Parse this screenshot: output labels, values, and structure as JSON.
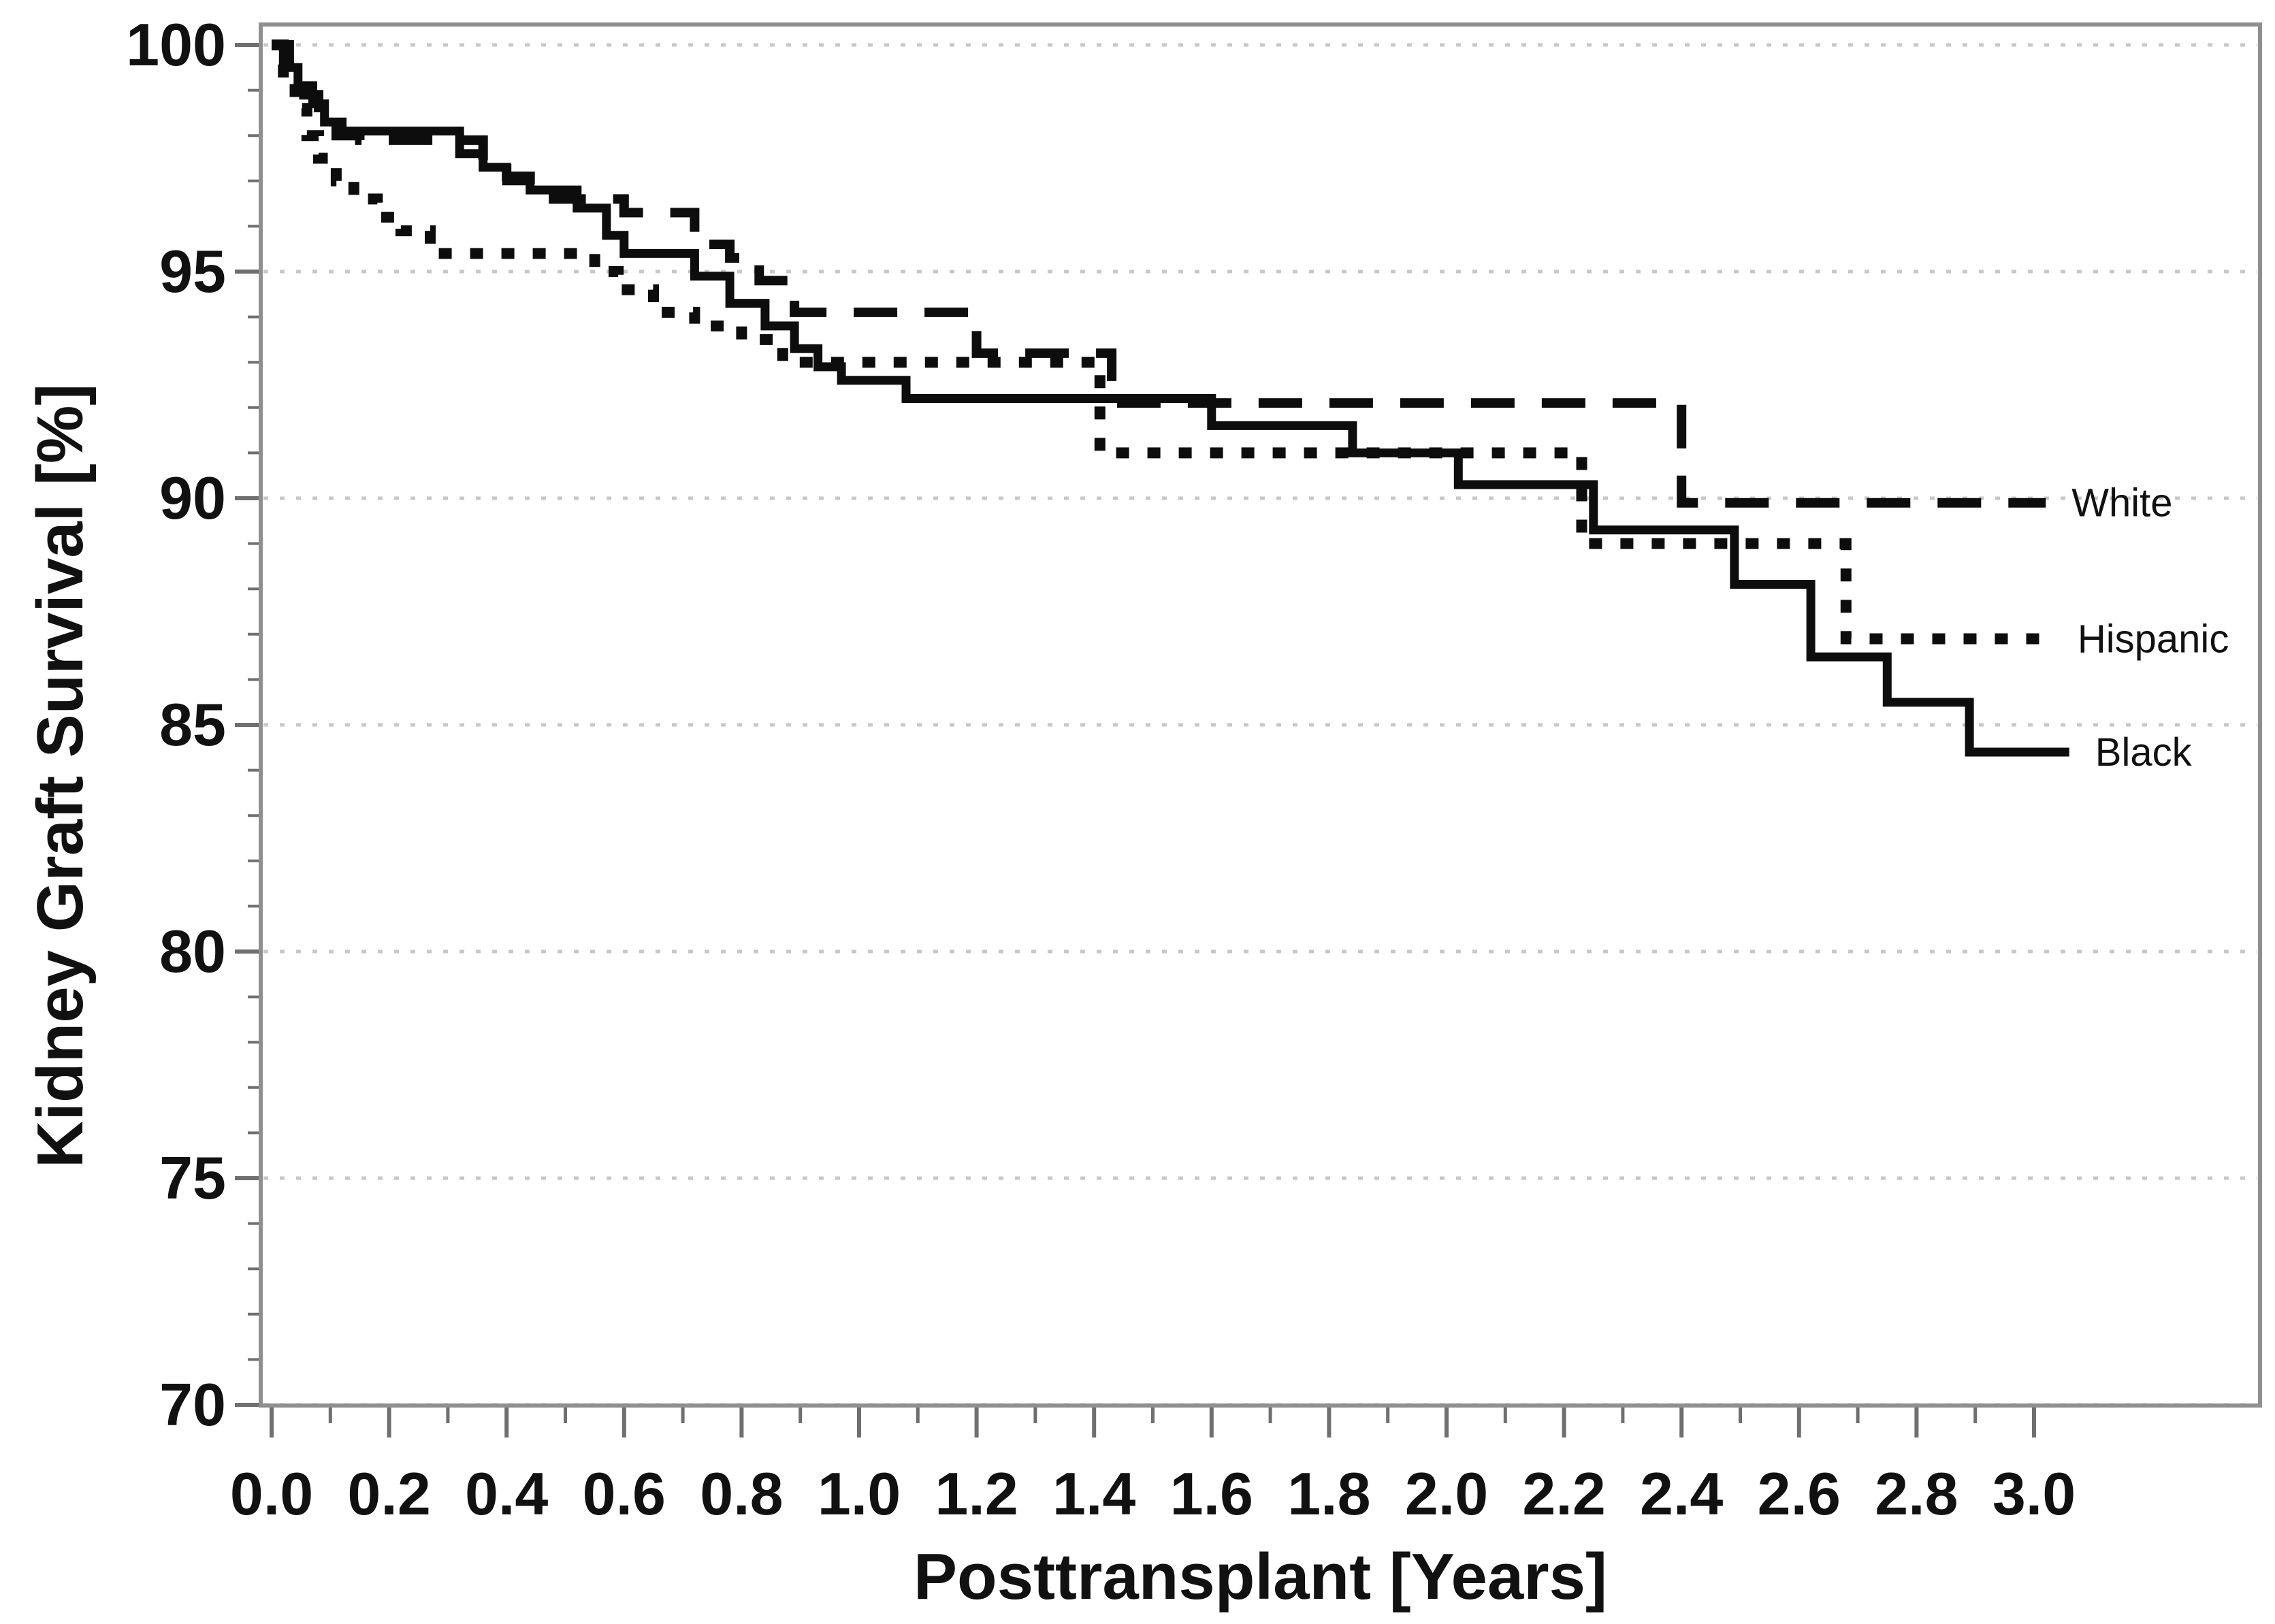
{
  "figure": {
    "background": "#ffffff",
    "y_axis": {
      "title": "Kidney Graft Survival [%]",
      "tick_labels": [
        "100",
        "95",
        "90",
        "85",
        "80",
        "75",
        "70"
      ],
      "tick_values": [
        100,
        95,
        90,
        85,
        80,
        75,
        70
      ],
      "range": [
        70,
        100
      ],
      "minor_tick_step": 1
    },
    "x_axis": {
      "title": "Posttransplant [Years]",
      "tick_labels": [
        "0.0",
        "0.2",
        "0.4",
        "0.6",
        "0.8",
        "1.0",
        "1.2",
        "1.4",
        "1.6",
        "1.8",
        "2.0",
        "2.2",
        "2.4",
        "2.6",
        "2.8",
        "3.0"
      ],
      "tick_values": [
        0.0,
        0.2,
        0.4,
        0.6,
        0.8,
        1.0,
        1.2,
        1.4,
        1.6,
        1.8,
        2.0,
        2.2,
        2.4,
        2.6,
        2.8,
        3.0
      ],
      "range": [
        0,
        3.39
      ],
      "minor_tick_step": 0.1
    }
  },
  "chart_data": {
    "type": "line",
    "subtype": "kaplan_meier_step",
    "title": "",
    "xlabel": "Posttransplant [Years]",
    "ylabel": "Kidney Graft Survival [%]",
    "xlim": [
      0,
      3.39
    ],
    "ylim": [
      70,
      100
    ],
    "grid": "horizontal dotted gridlines at every 5 percent",
    "legend_position": "end-of-line labels at right",
    "series": [
      {
        "name": "White",
        "line_style": "dashed",
        "color": "#0d0d0d",
        "steps": [
          [
            0.0,
            100
          ],
          [
            0.03,
            99.4
          ],
          [
            0.055,
            98.9
          ],
          [
            0.08,
            98.5
          ],
          [
            0.11,
            98.0
          ],
          [
            0.15,
            97.9
          ],
          [
            0.36,
            97.4
          ],
          [
            0.4,
            97.1
          ],
          [
            0.44,
            96.9
          ],
          [
            0.48,
            96.6
          ],
          [
            0.6,
            96.3
          ],
          [
            0.72,
            95.6
          ],
          [
            0.78,
            95.3
          ],
          [
            0.83,
            94.8
          ],
          [
            0.89,
            94.1
          ],
          [
            1.2,
            93.2
          ],
          [
            1.43,
            92.1
          ],
          [
            2.4,
            89.9
          ],
          [
            3.02,
            89.9
          ]
        ]
      },
      {
        "name": "Hispanic",
        "line_style": "dotted",
        "color": "#0d0d0d",
        "steps": [
          [
            0.0,
            100
          ],
          [
            0.02,
            99.2
          ],
          [
            0.04,
            98.6
          ],
          [
            0.06,
            98.0
          ],
          [
            0.08,
            97.5
          ],
          [
            0.11,
            97.0
          ],
          [
            0.14,
            96.6
          ],
          [
            0.18,
            96.2
          ],
          [
            0.22,
            95.9
          ],
          [
            0.27,
            95.4
          ],
          [
            0.55,
            95.0
          ],
          [
            0.59,
            94.6
          ],
          [
            0.65,
            94.1
          ],
          [
            0.72,
            93.8
          ],
          [
            0.8,
            93.5
          ],
          [
            0.87,
            93.0
          ],
          [
            1.41,
            91.0
          ],
          [
            2.23,
            89.0
          ],
          [
            2.68,
            86.9
          ],
          [
            3.03,
            86.9
          ]
        ]
      },
      {
        "name": "Black",
        "line_style": "solid",
        "color": "#0d0d0d",
        "steps": [
          [
            0.0,
            100
          ],
          [
            0.02,
            99.5
          ],
          [
            0.045,
            99.1
          ],
          [
            0.07,
            98.7
          ],
          [
            0.09,
            98.3
          ],
          [
            0.12,
            98.1
          ],
          [
            0.32,
            97.6
          ],
          [
            0.36,
            97.3
          ],
          [
            0.4,
            97.0
          ],
          [
            0.44,
            96.8
          ],
          [
            0.52,
            96.4
          ],
          [
            0.57,
            95.8
          ],
          [
            0.6,
            95.4
          ],
          [
            0.72,
            94.9
          ],
          [
            0.78,
            94.3
          ],
          [
            0.84,
            93.8
          ],
          [
            0.89,
            93.3
          ],
          [
            0.93,
            92.9
          ],
          [
            0.97,
            92.6
          ],
          [
            1.08,
            92.2
          ],
          [
            1.6,
            91.6
          ],
          [
            1.84,
            91.0
          ],
          [
            2.02,
            90.3
          ],
          [
            2.25,
            89.3
          ],
          [
            2.49,
            88.1
          ],
          [
            2.62,
            86.5
          ],
          [
            2.75,
            85.5
          ],
          [
            2.89,
            84.4
          ],
          [
            3.06,
            84.4
          ]
        ]
      }
    ]
  },
  "colors": {
    "curve": "#0d0d0d",
    "frame": "#8f8f8f",
    "gridline": "#c7c7c7",
    "tick": "#6f6f6f",
    "text": "#111111"
  }
}
